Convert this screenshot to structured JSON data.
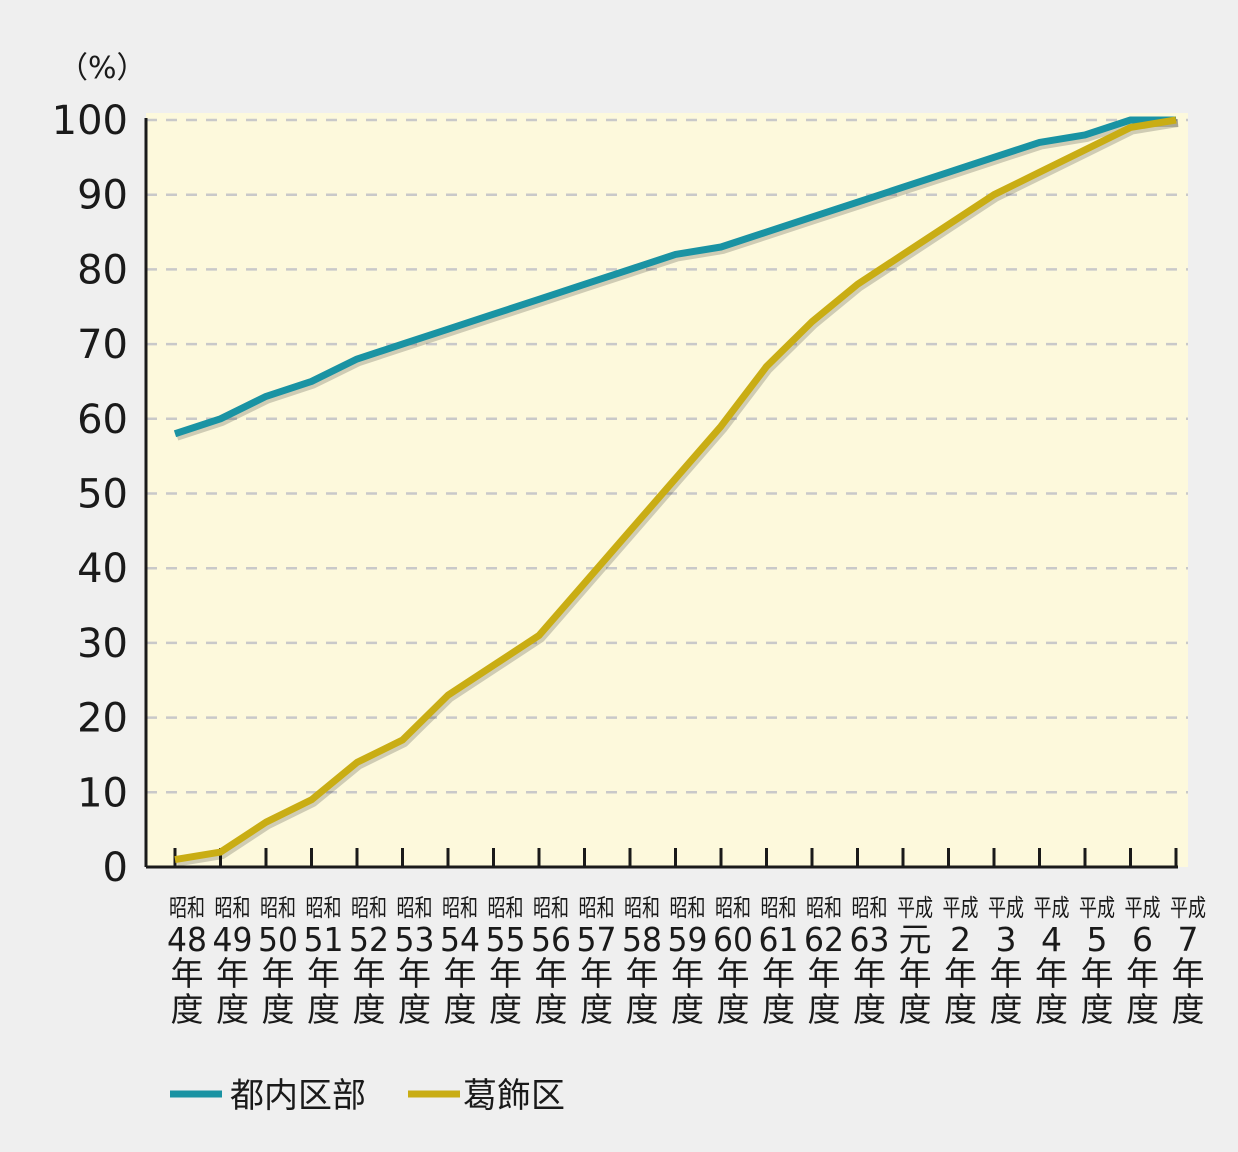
{
  "chart_data": {
    "type": "line",
    "y_unit_label": "（%）",
    "ylim": [
      0,
      100
    ],
    "yticks": [
      "0",
      "10",
      "20",
      "30",
      "40",
      "50",
      "60",
      "70",
      "80",
      "90",
      "100"
    ],
    "grid": true,
    "legend_position": "bottom-left",
    "categories": [
      {
        "era": "昭和",
        "num": "48",
        "suffix": [
          "年",
          "度"
        ]
      },
      {
        "era": "昭和",
        "num": "49",
        "suffix": [
          "年",
          "度"
        ]
      },
      {
        "era": "昭和",
        "num": "50",
        "suffix": [
          "年",
          "度"
        ]
      },
      {
        "era": "昭和",
        "num": "51",
        "suffix": [
          "年",
          "度"
        ]
      },
      {
        "era": "昭和",
        "num": "52",
        "suffix": [
          "年",
          "度"
        ]
      },
      {
        "era": "昭和",
        "num": "53",
        "suffix": [
          "年",
          "度"
        ]
      },
      {
        "era": "昭和",
        "num": "54",
        "suffix": [
          "年",
          "度"
        ]
      },
      {
        "era": "昭和",
        "num": "55",
        "suffix": [
          "年",
          "度"
        ]
      },
      {
        "era": "昭和",
        "num": "56",
        "suffix": [
          "年",
          "度"
        ]
      },
      {
        "era": "昭和",
        "num": "57",
        "suffix": [
          "年",
          "度"
        ]
      },
      {
        "era": "昭和",
        "num": "58",
        "suffix": [
          "年",
          "度"
        ]
      },
      {
        "era": "昭和",
        "num": "59",
        "suffix": [
          "年",
          "度"
        ]
      },
      {
        "era": "昭和",
        "num": "60",
        "suffix": [
          "年",
          "度"
        ]
      },
      {
        "era": "昭和",
        "num": "61",
        "suffix": [
          "年",
          "度"
        ]
      },
      {
        "era": "昭和",
        "num": "62",
        "suffix": [
          "年",
          "度"
        ]
      },
      {
        "era": "昭和",
        "num": "63",
        "suffix": [
          "年",
          "度"
        ]
      },
      {
        "era": "平成",
        "num": "元",
        "suffix": [
          "年",
          "度"
        ]
      },
      {
        "era": "平成",
        "num": "2",
        "suffix": [
          "年",
          "度"
        ]
      },
      {
        "era": "平成",
        "num": "3",
        "suffix": [
          "年",
          "度"
        ]
      },
      {
        "era": "平成",
        "num": "4",
        "suffix": [
          "年",
          "度"
        ]
      },
      {
        "era": "平成",
        "num": "5",
        "suffix": [
          "年",
          "度"
        ]
      },
      {
        "era": "平成",
        "num": "6",
        "suffix": [
          "年",
          "度"
        ]
      },
      {
        "era": "平成",
        "num": "7",
        "suffix": [
          "年",
          "度"
        ]
      }
    ],
    "series": [
      {
        "name": "都内区部",
        "color": "#1a93a3",
        "values": [
          58,
          60,
          63,
          65,
          68,
          70,
          72,
          74,
          76,
          78,
          80,
          82,
          83,
          85,
          87,
          89,
          91,
          93,
          95,
          97,
          98,
          100,
          100
        ]
      },
      {
        "name": "葛飾区",
        "color": "#c9ad14",
        "values": [
          1,
          2,
          6,
          9,
          14,
          17,
          23,
          27,
          31,
          38,
          45,
          52,
          59,
          67,
          73,
          78,
          82,
          86,
          90,
          93,
          96,
          99,
          100
        ]
      }
    ]
  }
}
